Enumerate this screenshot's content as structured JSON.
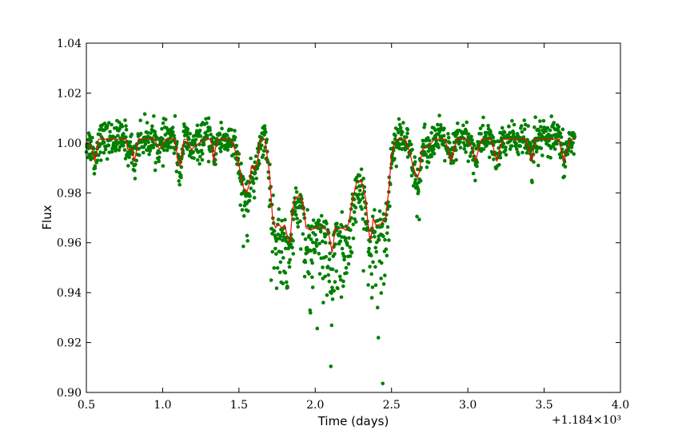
{
  "chart_data": {
    "type": "scatter",
    "title": "",
    "xlabel": "Time (days)",
    "ylabel": "Flux",
    "x_offset_label": "+1.184×10³",
    "xlim": [
      0.5,
      4.0
    ],
    "ylim": [
      0.9,
      1.04
    ],
    "x_ticks": [
      0.5,
      1.0,
      1.5,
      2.0,
      2.5,
      3.0,
      3.5,
      4.0
    ],
    "x_tick_labels": [
      "0.5",
      "1.0",
      "1.5",
      "2.0",
      "2.5",
      "3.0",
      "3.5",
      "4.0"
    ],
    "y_ticks": [
      0.9,
      0.92,
      0.94,
      0.96,
      0.98,
      1.0,
      1.02,
      1.04
    ],
    "y_tick_labels": [
      "0.90",
      "0.92",
      "0.94",
      "0.96",
      "0.98",
      "1.00",
      "1.02",
      "1.04"
    ],
    "grid": false,
    "legend": "none",
    "colors": {
      "data": "#007f00",
      "model": "#ff0000",
      "axes": "#000000"
    },
    "series": [
      {
        "kind": "scatter",
        "x_range": [
          0.5,
          3.7
        ],
        "noise_sigma": 0.0035,
        "point_count": 1600
      },
      {
        "kind": "line",
        "x": [
          0.5,
          0.52,
          0.54,
          0.555,
          0.57,
          0.58,
          0.62,
          0.76,
          0.77,
          0.8,
          0.815,
          0.83,
          0.84,
          0.95,
          0.96,
          0.98,
          1.0,
          1.02,
          1.03,
          1.08,
          1.09,
          1.1,
          1.115,
          1.13,
          1.14,
          1.16,
          1.17,
          1.19,
          1.24,
          1.28,
          1.32,
          1.325,
          1.335,
          1.345,
          1.36,
          1.43,
          1.46,
          1.49,
          1.53,
          1.55,
          1.57,
          1.58,
          1.59,
          1.6,
          1.62,
          1.63,
          1.64,
          1.67,
          1.7,
          1.72,
          1.74,
          1.76,
          1.78,
          1.8,
          1.82,
          1.835,
          1.85,
          1.87,
          1.9,
          1.92,
          1.94,
          1.97,
          2.0,
          2.02,
          2.05,
          2.08,
          2.09,
          2.1,
          2.11,
          2.12,
          2.13,
          2.15,
          2.18,
          2.2,
          2.22,
          2.24,
          2.27,
          2.3,
          2.33,
          2.35,
          2.36,
          2.37,
          2.38,
          2.39,
          2.4,
          2.43,
          2.46,
          2.48,
          2.5,
          2.52,
          2.54,
          2.56,
          2.59,
          2.6,
          2.61,
          2.62,
          2.63,
          2.64,
          2.66,
          2.67,
          2.68,
          2.69,
          2.7,
          2.72,
          2.74,
          2.75,
          2.78,
          2.85,
          2.87,
          2.89,
          2.91,
          2.93,
          3.0,
          3.03,
          3.05,
          3.07,
          3.09,
          3.15,
          3.17,
          3.19,
          3.21,
          3.23,
          3.38,
          3.4,
          3.42,
          3.44,
          3.6,
          3.61,
          3.63,
          3.65,
          3.67,
          3.7
        ],
        "y": [
          1.0,
          0.9995,
          0.9975,
          0.9925,
          0.9975,
          1.0015,
          1.0015,
          1.0015,
          0.9975,
          0.9975,
          0.9925,
          0.9975,
          1.0015,
          1.0015,
          0.9995,
          0.9975,
          0.9995,
          1.0015,
          1.0015,
          1.0015,
          0.9975,
          0.9925,
          0.9905,
          0.9975,
          1.0015,
          1.0015,
          0.999,
          0.9975,
          1.0,
          1.0015,
          1.0015,
          0.9975,
          0.9925,
          0.9975,
          1.0015,
          1.0015,
          1.0,
          0.994,
          0.982,
          0.98,
          0.984,
          0.99,
          0.991,
          0.989,
          0.992,
          0.996,
          1.0015,
          1.0015,
          0.988,
          0.97,
          0.966,
          0.9675,
          0.966,
          0.967,
          0.962,
          0.96,
          0.973,
          0.978,
          0.979,
          0.976,
          0.966,
          0.965,
          0.966,
          0.966,
          0.966,
          0.965,
          0.963,
          0.96,
          0.956,
          0.96,
          0.966,
          0.9655,
          0.966,
          0.965,
          0.968,
          0.976,
          0.984,
          0.985,
          0.978,
          0.965,
          0.961,
          0.964,
          0.97,
          0.968,
          0.967,
          0.9675,
          0.97,
          0.98,
          0.995,
          1.0,
          1.0015,
          1.0015,
          1.0015,
          1.0,
          0.998,
          0.996,
          0.9935,
          0.991,
          0.987,
          0.986,
          0.988,
          0.992,
          0.997,
          0.9985,
          0.9985,
          0.999,
          1.0015,
          1.0015,
          0.9975,
          0.9925,
          0.9975,
          1.0015,
          1.0015,
          0.9975,
          0.9925,
          0.9975,
          1.0015,
          1.0015,
          0.9975,
          0.9925,
          0.9975,
          1.0015,
          1.0015,
          0.9975,
          0.9925,
          1.0015,
          1.0015,
          0.9975,
          0.9925,
          0.9975,
          1.0015,
          1.0015
        ]
      }
    ]
  }
}
